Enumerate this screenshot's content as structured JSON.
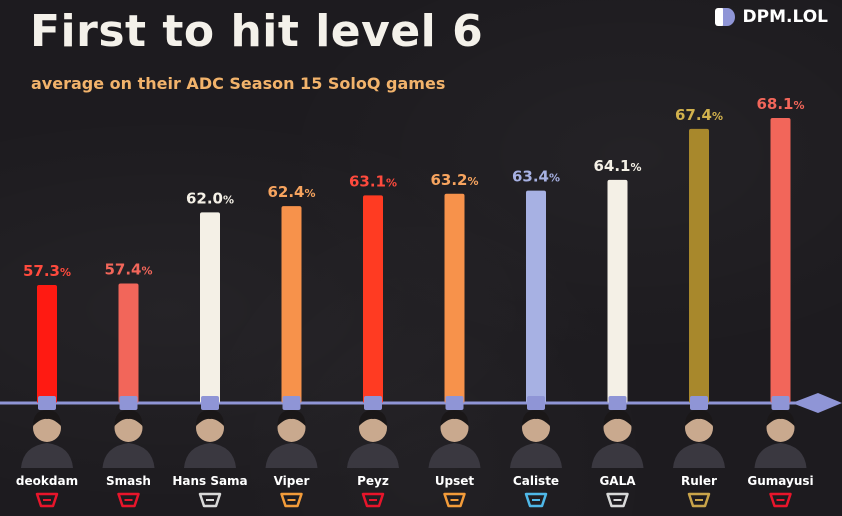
{
  "header": {
    "title": "First to hit level 6",
    "subtitle": "average on their ADC Season 15 SoloQ games",
    "brand": "DPM.LOL"
  },
  "colors": {
    "background": "#1d1b1f",
    "axis": "#8f95d6",
    "subtitle": "#f2b36b"
  },
  "chart_data": {
    "type": "bar",
    "title": "First to hit level 6",
    "subtitle": "average on their ADC Season 15 SoloQ games",
    "unit": "%",
    "categories": [
      "deokdam",
      "Smash",
      "Hans Sama",
      "Viper",
      "Peyz",
      "Upset",
      "Caliste",
      "GALA",
      "Ruler",
      "Gumayusi"
    ],
    "values": [
      57.3,
      57.4,
      62.0,
      62.4,
      63.1,
      63.2,
      63.4,
      64.1,
      67.4,
      68.1
    ],
    "value_labels": [
      "57.3",
      "57.4",
      "62.0",
      "62.4",
      "63.1",
      "63.2",
      "63.4",
      "64.1",
      "67.4",
      "68.1"
    ],
    "bar_colors": [
      "#ff1a12",
      "#f2665a",
      "#f4f0e6",
      "#f7924b",
      "#ff3b22",
      "#f7924b",
      "#a7b1e3",
      "#f4f0e6",
      "#a8882c",
      "#f2665a"
    ],
    "label_colors": [
      "#ff4a3d",
      "#f2665a",
      "#f4f0e6",
      "#f7a45f",
      "#ff4a3d",
      "#f7a45f",
      "#a7b1e3",
      "#f4f0e6",
      "#d2b24d",
      "#f2665a"
    ],
    "team_logo_icons": [
      "kt-rolster-icon",
      "t1-icon",
      "g2-icon",
      "hle-icon",
      "gen-g-fnatic-icon",
      "fnatic-icon",
      "karmine-corp-icon",
      "ig-icon",
      "gen-g-icon",
      "t1-icon"
    ],
    "team_logo_colors": [
      "#e8152b",
      "#e8152b",
      "#d9d9d9",
      "#f39c3a",
      "#e8152b",
      "#f39c3a",
      "#4fb8e8",
      "#d9d9d9",
      "#c9a44a",
      "#e8152b"
    ],
    "ylim": [
      50,
      70
    ],
    "xlabel": "",
    "ylabel": "",
    "grid": false,
    "legend": "none"
  }
}
